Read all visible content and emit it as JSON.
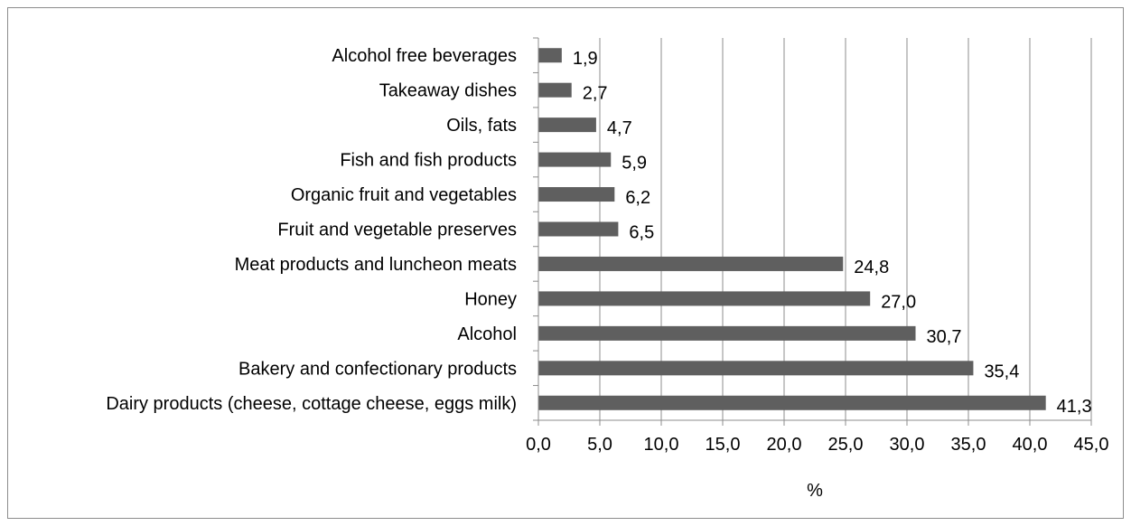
{
  "chart_data": {
    "type": "bar",
    "orientation": "horizontal",
    "categories": [
      "Alcohol free beverages",
      "Takeaway dishes",
      "Oils, fats",
      "Fish and fish products",
      "Organic fruit and vegetables",
      "Fruit and vegetable preserves",
      "Meat products and luncheon meats",
      "Honey",
      "Alcohol",
      "Bakery and confectionary products",
      "Dairy products (cheese, cottage cheese, eggs milk)"
    ],
    "values": [
      1.9,
      2.7,
      4.7,
      5.9,
      6.2,
      6.5,
      24.8,
      27.0,
      30.7,
      35.4,
      41.3
    ],
    "value_labels": [
      "1,9",
      "2,7",
      "4,7",
      "5,9",
      "6,2",
      "6,5",
      "24,8",
      "27,0",
      "30,7",
      "35,4",
      "41,3"
    ],
    "xlabel": "%",
    "ylabel": "",
    "xlim": [
      0,
      45
    ],
    "xticks": [
      0,
      5,
      10,
      15,
      20,
      25,
      30,
      35,
      40,
      45
    ],
    "xtick_labels": [
      "0,0",
      "5,0",
      "10,0",
      "15,0",
      "20,0",
      "25,0",
      "30,0",
      "35,0",
      "40,0",
      "45,0"
    ],
    "grid": "vertical",
    "legend": "none",
    "bar_color": "#5f5f5f",
    "grid_color": "#8c8c8c"
  }
}
